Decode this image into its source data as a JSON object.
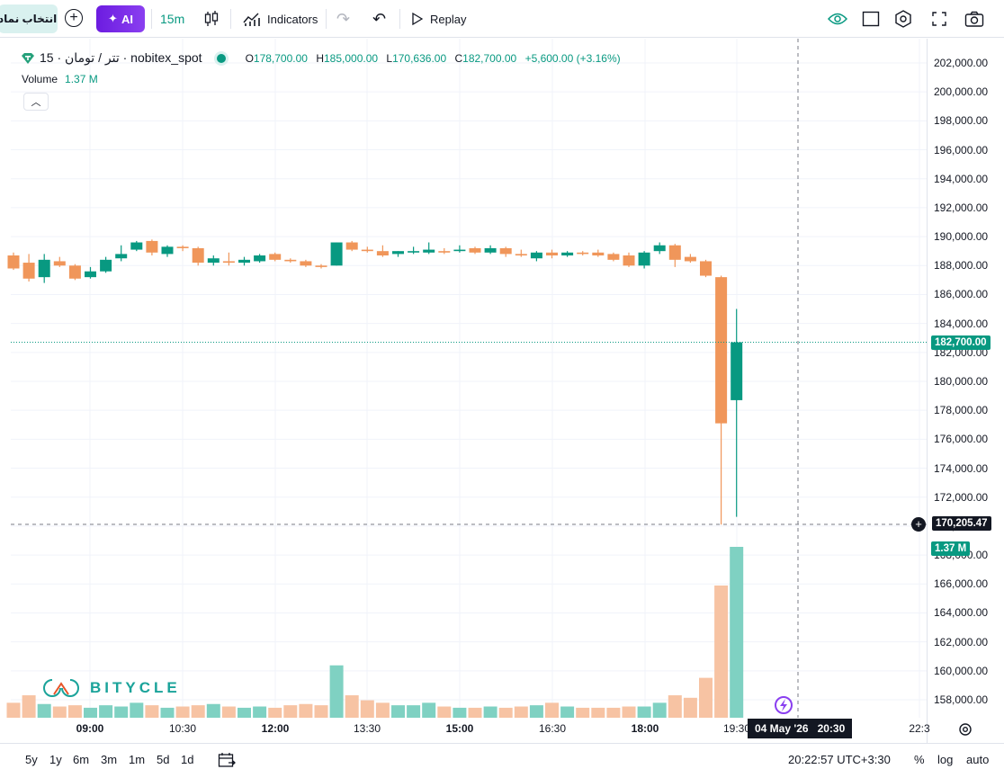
{
  "toolbar": {
    "symbol_button": "انتخاب نماد",
    "add_label": "+",
    "ai_label": "AI",
    "interval": "15m",
    "indicators": "Indicators",
    "replay": "Replay"
  },
  "legend": {
    "symbol": "تتر / تومان · 15 · nobitex_spot",
    "open_label": "O",
    "open": "178,700.00",
    "high_label": "H",
    "high": "185,000.00",
    "low_label": "L",
    "low": "170,636.00",
    "close_label": "C",
    "close": "182,700.00",
    "change": "+5,600.00 (+3.16%)",
    "volume_label": "Volume",
    "volume_value": "1.37 M"
  },
  "price_axis": {
    "labels": [
      "202,000.00",
      "200,000.00",
      "198,000.00",
      "196,000.00",
      "194,000.00",
      "192,000.00",
      "190,000.00",
      "188,000.00",
      "186,000.00",
      "184,000.00",
      "182,000.00",
      "180,000.00",
      "178,000.00",
      "176,000.00",
      "174,000.00",
      "172,000.00",
      "170,000.00",
      "168,000.00",
      "166,000.00",
      "164,000.00",
      "162,000.00",
      "160,000.00",
      "158,000.00"
    ],
    "last_price_tag": "182,700.00",
    "crosshair_tag": "170,205.47",
    "volume_tag": "1.37 M"
  },
  "time_axis": {
    "labels": [
      {
        "text": "09:00",
        "bold": true
      },
      {
        "text": "10:30",
        "bold": false
      },
      {
        "text": "12:00",
        "bold": true
      },
      {
        "text": "13:30",
        "bold": false
      },
      {
        "text": "15:00",
        "bold": true
      },
      {
        "text": "16:30",
        "bold": false
      },
      {
        "text": "18:00",
        "bold": true
      },
      {
        "text": "19:30",
        "bold": false
      },
      {
        "text": "22:3",
        "bold": false
      }
    ],
    "crosshair_date": "04 May '26",
    "crosshair_time": "20:30"
  },
  "bottom_bar": {
    "ranges": [
      "5y",
      "1y",
      "6m",
      "3m",
      "1m",
      "5d",
      "1d"
    ],
    "clock": "20:22:57 UTC+3:30",
    "percent": "%",
    "log": "log",
    "auto": "auto"
  },
  "watermark": {
    "text": "BITYCLE"
  },
  "colors": {
    "up": "#089981",
    "down": "#f0965a",
    "up_vol": "#7fd1c2",
    "down_vol": "#f7c3a3",
    "accent": "#089981"
  },
  "chart_data": {
    "type": "candlestick",
    "interval": "15m",
    "ylim": [
      157000,
      203000
    ],
    "candles": [
      {
        "o": 188700,
        "h": 188900,
        "c": 187800,
        "l": 187700,
        "vol": 0.12
      },
      {
        "o": 188200,
        "h": 188800,
        "c": 187100,
        "l": 186900,
        "vol": 0.18
      },
      {
        "o": 187200,
        "h": 188800,
        "c": 188400,
        "l": 186800,
        "vol": 0.11
      },
      {
        "o": 188300,
        "h": 188600,
        "c": 188000,
        "l": 187900,
        "vol": 0.09
      },
      {
        "o": 188000,
        "h": 188100,
        "c": 187100,
        "l": 187000,
        "vol": 0.1
      },
      {
        "o": 187200,
        "h": 187900,
        "c": 187600,
        "l": 187100,
        "vol": 0.08
      },
      {
        "o": 187600,
        "h": 188600,
        "c": 188400,
        "l": 187500,
        "vol": 0.1
      },
      {
        "o": 188500,
        "h": 189400,
        "c": 188800,
        "l": 188300,
        "vol": 0.09
      },
      {
        "o": 189100,
        "h": 189700,
        "c": 189600,
        "l": 189000,
        "vol": 0.12
      },
      {
        "o": 189700,
        "h": 189800,
        "c": 188900,
        "l": 188700,
        "vol": 0.1
      },
      {
        "o": 188800,
        "h": 189400,
        "c": 189300,
        "l": 188600,
        "vol": 0.08
      },
      {
        "o": 189300,
        "h": 189400,
        "c": 189200,
        "l": 189000,
        "vol": 0.09
      },
      {
        "o": 189200,
        "h": 189300,
        "c": 188200,
        "l": 188000,
        "vol": 0.1
      },
      {
        "o": 188200,
        "h": 188700,
        "c": 188500,
        "l": 188000,
        "vol": 0.11
      },
      {
        "o": 188300,
        "h": 188900,
        "c": 188200,
        "l": 188000,
        "vol": 0.09
      },
      {
        "o": 188200,
        "h": 188600,
        "c": 188400,
        "l": 188000,
        "vol": 0.08
      },
      {
        "o": 188300,
        "h": 188800,
        "c": 188700,
        "l": 188200,
        "vol": 0.09
      },
      {
        "o": 188800,
        "h": 188900,
        "c": 188400,
        "l": 188300,
        "vol": 0.08
      },
      {
        "o": 188400,
        "h": 188500,
        "c": 188300,
        "l": 188200,
        "vol": 0.1
      },
      {
        "o": 188300,
        "h": 188400,
        "c": 188000,
        "l": 187900,
        "vol": 0.11
      },
      {
        "o": 188000,
        "h": 188100,
        "c": 187900,
        "l": 187800,
        "vol": 0.1
      },
      {
        "o": 188000,
        "h": 189600,
        "c": 189600,
        "l": 188000,
        "vol": 0.42
      },
      {
        "o": 189600,
        "h": 189700,
        "c": 189100,
        "l": 189000,
        "vol": 0.18
      },
      {
        "o": 189100,
        "h": 189300,
        "c": 189000,
        "l": 188900,
        "vol": 0.14
      },
      {
        "o": 189000,
        "h": 189400,
        "c": 188700,
        "l": 188600,
        "vol": 0.12
      },
      {
        "o": 188800,
        "h": 189000,
        "c": 189000,
        "l": 188600,
        "vol": 0.1
      },
      {
        "o": 188900,
        "h": 189300,
        "c": 189000,
        "l": 188800,
        "vol": 0.1
      },
      {
        "o": 188900,
        "h": 189600,
        "c": 189100,
        "l": 188800,
        "vol": 0.12
      },
      {
        "o": 189000,
        "h": 189200,
        "c": 188900,
        "l": 188800,
        "vol": 0.09
      },
      {
        "o": 189000,
        "h": 189400,
        "c": 189100,
        "l": 188900,
        "vol": 0.08
      },
      {
        "o": 189200,
        "h": 189300,
        "c": 188900,
        "l": 188800,
        "vol": 0.08
      },
      {
        "o": 188900,
        "h": 189400,
        "c": 189200,
        "l": 188800,
        "vol": 0.09
      },
      {
        "o": 189200,
        "h": 189300,
        "c": 188800,
        "l": 188600,
        "vol": 0.08
      },
      {
        "o": 188800,
        "h": 189100,
        "c": 188700,
        "l": 188600,
        "vol": 0.09
      },
      {
        "o": 188500,
        "h": 189000,
        "c": 188900,
        "l": 188300,
        "vol": 0.1
      },
      {
        "o": 188900,
        "h": 189100,
        "c": 188700,
        "l": 188500,
        "vol": 0.12
      },
      {
        "o": 188700,
        "h": 189000,
        "c": 188900,
        "l": 188600,
        "vol": 0.09
      },
      {
        "o": 188900,
        "h": 189000,
        "c": 188800,
        "l": 188700,
        "vol": 0.08
      },
      {
        "o": 188900,
        "h": 189100,
        "c": 188700,
        "l": 188600,
        "vol": 0.08
      },
      {
        "o": 188800,
        "h": 188900,
        "c": 188400,
        "l": 188300,
        "vol": 0.08
      },
      {
        "o": 188700,
        "h": 188900,
        "c": 188000,
        "l": 187900,
        "vol": 0.09
      },
      {
        "o": 188000,
        "h": 189000,
        "c": 188900,
        "l": 187800,
        "vol": 0.09
      },
      {
        "o": 189000,
        "h": 189600,
        "c": 189400,
        "l": 188800,
        "vol": 0.12
      },
      {
        "o": 189400,
        "h": 189500,
        "c": 188400,
        "l": 187900,
        "vol": 0.18
      },
      {
        "o": 188600,
        "h": 188800,
        "c": 188300,
        "l": 188200,
        "vol": 0.16
      },
      {
        "o": 188300,
        "h": 188400,
        "c": 187300,
        "l": 187200,
        "vol": 0.32
      },
      {
        "o": 187200,
        "h": 187300,
        "c": 177100,
        "l": 170100,
        "vol": 1.06
      },
      {
        "o": 178700,
        "h": 185000,
        "c": 182700,
        "l": 170636,
        "vol": 1.37
      }
    ]
  }
}
